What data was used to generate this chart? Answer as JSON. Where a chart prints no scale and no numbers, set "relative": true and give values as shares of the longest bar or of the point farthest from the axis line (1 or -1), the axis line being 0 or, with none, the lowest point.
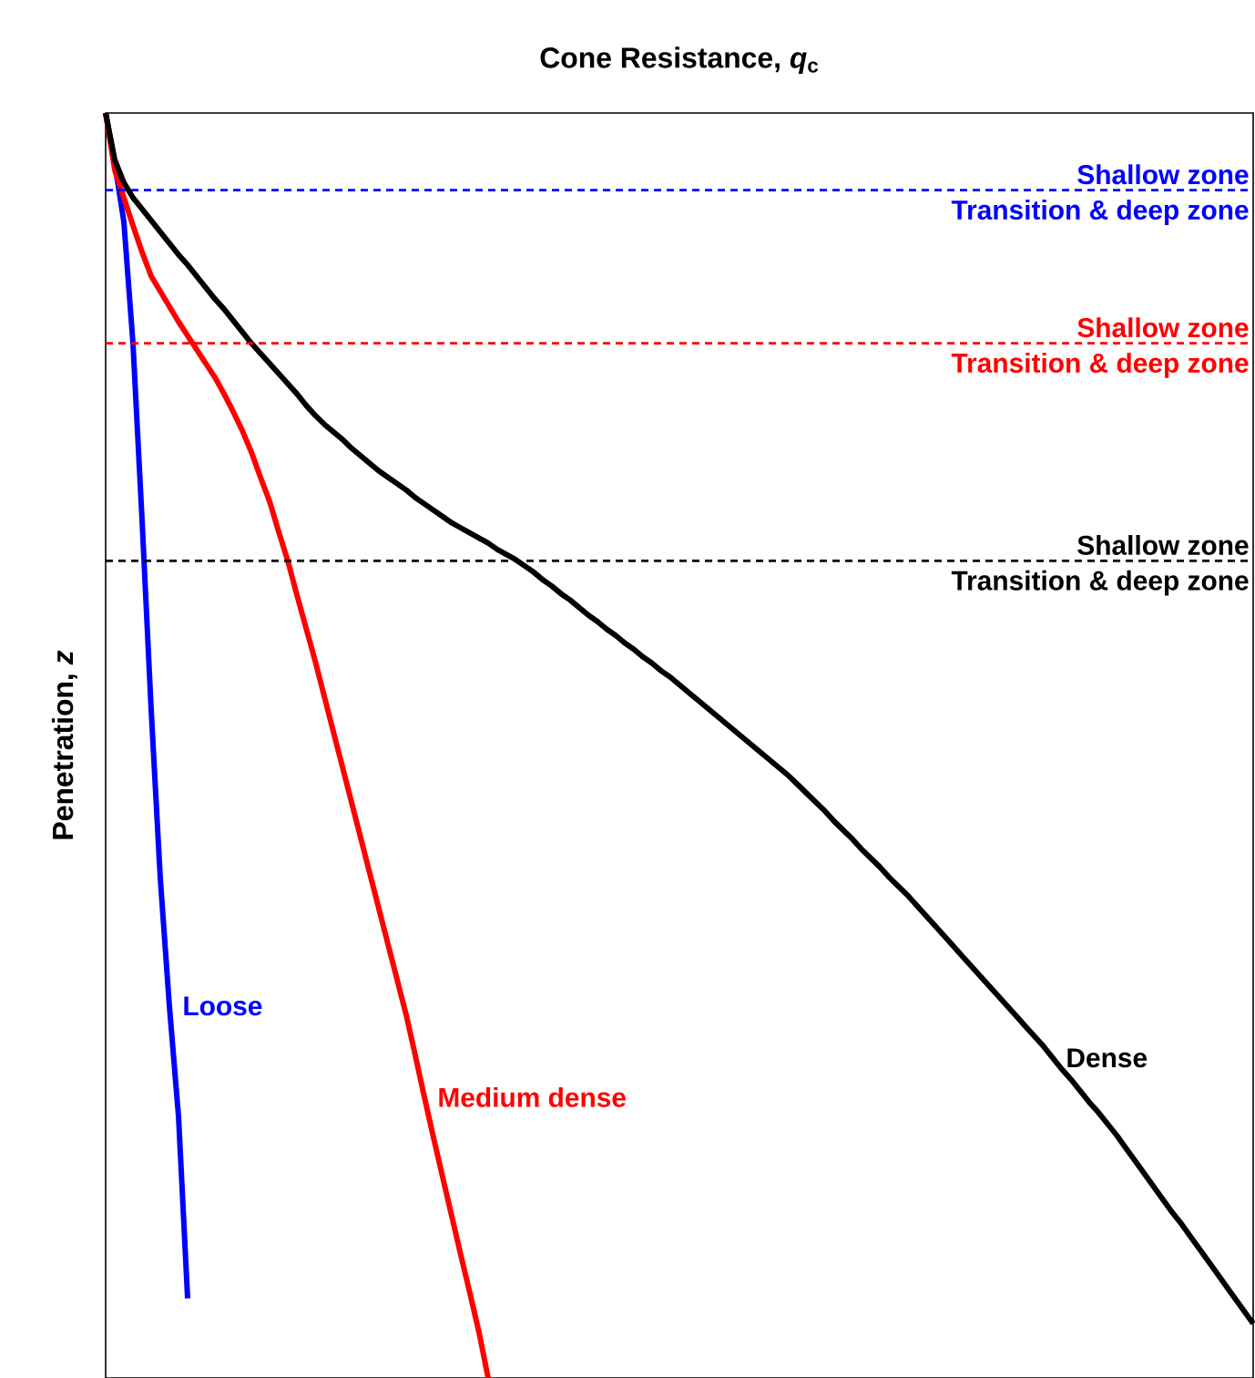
{
  "chart_data": {
    "type": "line",
    "relative": true,
    "xlabel": "Cone Resistance, *q*$_{c}$",
    "ylabel": "Penetration, *z*",
    "categories": [
      null,
      null,
      null,
      null,
      null,
      null,
      null,
      null,
      null,
      null,
      null,
      null,
      null,
      null,
      null,
      null,
      null,
      null,
      null,
      null,
      null,
      null,
      null,
      null,
      null,
      null,
      null,
      null,
      null,
      null,
      null,
      null,
      null,
      null,
      null,
      null,
      null,
      null,
      null,
      null,
      null,
      null,
      null,
      null,
      null,
      null,
      null,
      null,
      null,
      null,
      null,
      null,
      null,
      null,
      null,
      null,
      null,
      null,
      null,
      null,
      null,
      null,
      null,
      null,
      null,
      null,
      null,
      null,
      null,
      null,
      null,
      null,
      null,
      null,
      null,
      null,
      null,
      null,
      null,
      null,
      null,
      null,
      null,
      null,
      null,
      null,
      null,
      null,
      null,
      null,
      null,
      null,
      null,
      null,
      null,
      null,
      null,
      null,
      null,
      null,
      null,
      null,
      null,
      null,
      null,
      null,
      null,
      null,
      null,
      null,
      null,
      null,
      null,
      null,
      null,
      null,
      null,
      null,
      null,
      null,
      null,
      null,
      null,
      null,
      null,
      null,
      null
    ],
    "series": [
      {
        "name": "Loose",
        "color": "#0000ff",
        "values": [
          0,
          -0.04,
          -0.086,
          -0.182,
          -0.322,
          -0.472,
          -0.605,
          -0.706,
          -0.793,
          -0.937,
          null,
          null,
          null,
          null,
          null,
          null,
          null,
          null,
          null,
          null,
          null,
          null,
          null,
          null,
          null,
          null,
          null,
          null,
          null,
          null,
          null,
          null,
          null,
          null,
          null,
          null,
          null,
          null,
          null,
          null,
          null,
          null,
          null,
          null,
          null,
          null,
          null,
          null,
          null,
          null,
          null,
          null,
          null,
          null,
          null,
          null,
          null,
          null,
          null,
          null,
          null,
          null,
          null,
          null,
          null,
          null,
          null,
          null,
          null,
          null,
          null,
          null,
          null,
          null,
          null,
          null,
          null,
          null,
          null,
          null,
          null,
          null,
          null,
          null,
          null,
          null,
          null,
          null,
          null,
          null,
          null,
          null,
          null,
          null,
          null,
          null,
          null,
          null,
          null,
          null,
          null,
          null,
          null,
          null,
          null,
          null,
          null,
          null,
          null,
          null,
          null,
          null,
          null,
          null,
          null,
          null,
          null,
          null,
          null,
          null,
          null,
          null,
          null,
          null,
          null,
          null,
          null
        ]
      },
      {
        "name": "Medium dense",
        "color": "#ff0000",
        "values": [
          0,
          -0.045,
          -0.067,
          -0.089,
          -0.11,
          -0.129,
          -0.141,
          -0.153,
          -0.165,
          -0.176,
          -0.187,
          -0.198,
          -0.209,
          -0.222,
          -0.236,
          -0.251,
          -0.268,
          -0.288,
          -0.307,
          -0.331,
          -0.354,
          -0.381,
          -0.407,
          -0.433,
          -0.461,
          -0.489,
          -0.517,
          -0.545,
          -0.573,
          -0.601,
          -0.629,
          -0.657,
          -0.685,
          -0.713,
          -0.745,
          -0.778,
          -0.81,
          -0.841,
          -0.872,
          -0.903,
          -0.933,
          -0.964,
          -1.0,
          null,
          null,
          null,
          null,
          null,
          null,
          null,
          null,
          null,
          null,
          null,
          null,
          null,
          null,
          null,
          null,
          null,
          null,
          null,
          null,
          null,
          null,
          null,
          null,
          null,
          null,
          null,
          null,
          null,
          null,
          null,
          null,
          null,
          null,
          null,
          null,
          null,
          null,
          null,
          null,
          null,
          null,
          null,
          null,
          null,
          null,
          null,
          null,
          null,
          null,
          null,
          null,
          null,
          null,
          null,
          null,
          null,
          null,
          null,
          null,
          null,
          null,
          null,
          null,
          null,
          null,
          null,
          null,
          null,
          null,
          null,
          null,
          null,
          null,
          null,
          null,
          null,
          null,
          null,
          null,
          null,
          null,
          null,
          null
        ]
      },
      {
        "name": "Dense",
        "color": "#000000",
        "values": [
          0,
          -0.037,
          -0.055,
          -0.067,
          -0.076,
          -0.085,
          -0.094,
          -0.103,
          -0.112,
          -0.12,
          -0.129,
          -0.138,
          -0.147,
          -0.155,
          -0.164,
          -0.173,
          -0.182,
          -0.19,
          -0.198,
          -0.206,
          -0.214,
          -0.222,
          -0.231,
          -0.239,
          -0.246,
          -0.252,
          -0.258,
          -0.265,
          -0.271,
          -0.277,
          -0.283,
          -0.288,
          -0.293,
          -0.298,
          -0.304,
          -0.309,
          -0.314,
          -0.319,
          -0.324,
          -0.328,
          -0.332,
          -0.336,
          -0.34,
          -0.345,
          -0.349,
          -0.353,
          -0.358,
          -0.363,
          -0.369,
          -0.374,
          -0.38,
          -0.385,
          -0.391,
          -0.397,
          -0.402,
          -0.408,
          -0.413,
          -0.419,
          -0.424,
          -0.43,
          -0.435,
          -0.441,
          -0.446,
          -0.452,
          -0.458,
          -0.464,
          -0.47,
          -0.476,
          -0.482,
          -0.488,
          -0.494,
          -0.5,
          -0.506,
          -0.512,
          -0.518,
          -0.524,
          -0.531,
          -0.538,
          -0.545,
          -0.552,
          -0.56,
          -0.567,
          -0.574,
          -0.582,
          -0.589,
          -0.596,
          -0.604,
          -0.611,
          -0.618,
          -0.626,
          -0.634,
          -0.642,
          -0.65,
          -0.658,
          -0.666,
          -0.674,
          -0.682,
          -0.69,
          -0.698,
          -0.706,
          -0.714,
          -0.722,
          -0.73,
          -0.738,
          -0.747,
          -0.756,
          -0.764,
          -0.773,
          -0.782,
          -0.79,
          -0.799,
          -0.808,
          -0.818,
          -0.828,
          -0.838,
          -0.848,
          -0.858,
          -0.868,
          -0.877,
          -0.887,
          -0.897,
          -0.907,
          -0.917,
          -0.927,
          -0.937,
          -0.947,
          -0.957
        ]
      }
    ],
    "ref_lines": [
      {
        "axis": "y",
        "value": -0.061,
        "label": "Shallow zone",
        "color": "#0000ff",
        "line_style": "dashed"
      },
      {
        "axis": "y",
        "value": -0.182,
        "label": "Shallow zone",
        "color": "#ff0000",
        "line_style": "dashed"
      },
      {
        "axis": "y",
        "value": -0.354,
        "label": "Shallow zone",
        "color": "#000000",
        "line_style": "dashed"
      }
    ],
    "annotations": [
      {
        "text": "Transition & deep zone",
        "y": -0.061
      },
      {
        "text": "Transition & deep zone",
        "y": -0.182
      },
      {
        "text": "Transition & deep zone",
        "y": -0.354
      }
    ]
  }
}
